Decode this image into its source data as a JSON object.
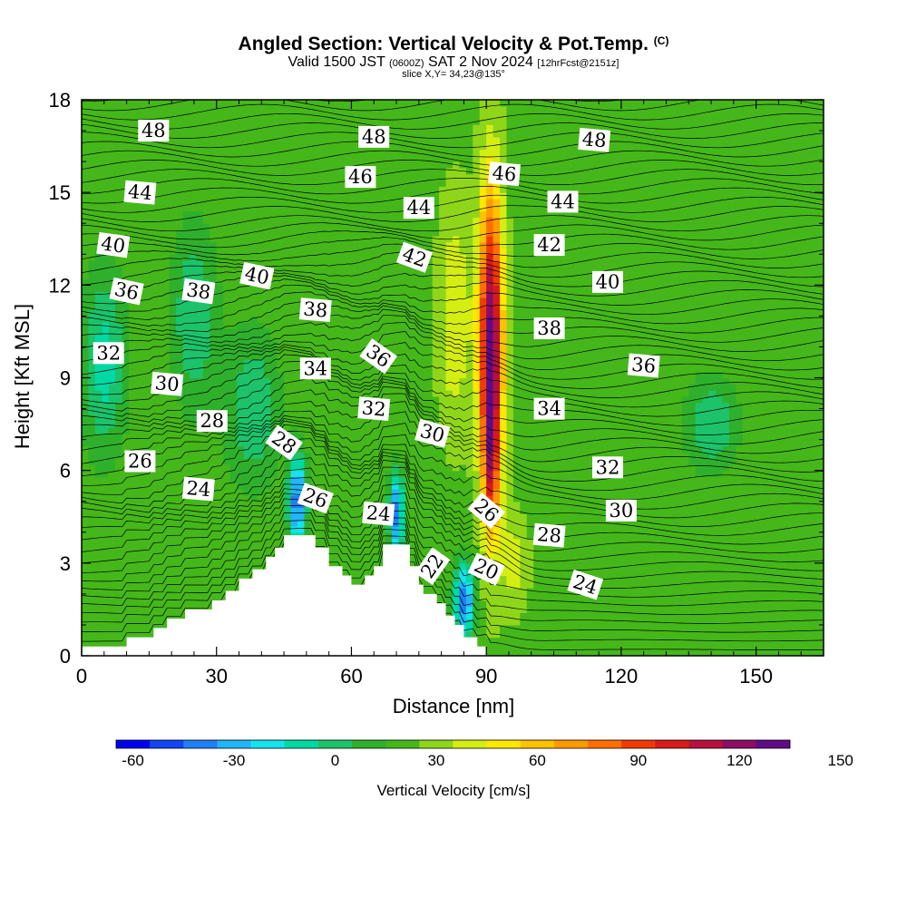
{
  "header": {
    "title": "Angled Section: Vertical Velocity & Pot.Temp.",
    "title_mark": "(C)",
    "valid_prefix": "Valid 1500 JST",
    "valid_utc": "(0600Z)",
    "valid_date": "SAT 2 Nov 2024",
    "forecast": "[12hrFcst@2151z]",
    "slice": "slice X,Y= 34,23@135°"
  },
  "colorbar": {
    "label": "Vertical Velocity [cm/s]",
    "min": -65,
    "step": 10,
    "tick_labels": [
      "-60",
      "-30",
      "0",
      "30",
      "60",
      "90",
      "120",
      "150"
    ],
    "tick_values": [
      -60,
      -30,
      0,
      30,
      60,
      90,
      120,
      150
    ],
    "colors": [
      "#0000f0",
      "#1245f5",
      "#1f7ff7",
      "#21b5f9",
      "#16e3ee",
      "#00d9a6",
      "#1cc36a",
      "#2fb02c",
      "#45b71a",
      "#8fd61a",
      "#d4ee12",
      "#ffe800",
      "#ffc200",
      "#ff9a00",
      "#ff6e00",
      "#f03a00",
      "#d81a1a",
      "#b8103c",
      "#8c0c66",
      "#600a8a"
    ]
  },
  "chart_data": {
    "type": "heatmap",
    "title": "Angled Section: Vertical Velocity & Pot.Temp. (C)",
    "xlabel": "Distance [nm]",
    "ylabel": "Height [Kft MSL]",
    "xlim": [
      0,
      165
    ],
    "ylim": [
      0,
      18
    ],
    "xticks": [
      0,
      30,
      60,
      90,
      120,
      150
    ],
    "yticks": [
      0,
      3,
      6,
      9,
      12,
      15,
      18
    ],
    "xtick_labels": [
      "0",
      "30",
      "60",
      "90",
      "120",
      "150"
    ],
    "ytick_labels": [
      "0",
      "3",
      "6",
      "9",
      "12",
      "15",
      "18"
    ],
    "grid": false,
    "fill_variable": "Vertical Velocity [cm/s]",
    "contour_variable": "Potential Temperature (C)",
    "contour_interval": 1,
    "terrain": [
      [
        0,
        0.3
      ],
      [
        10,
        0.3
      ],
      [
        10,
        0.6
      ],
      [
        16,
        0.6
      ],
      [
        16,
        0.9
      ],
      [
        19,
        0.9
      ],
      [
        19,
        1.2
      ],
      [
        23,
        1.2
      ],
      [
        23,
        1.5
      ],
      [
        29,
        1.5
      ],
      [
        29,
        1.8
      ],
      [
        32,
        1.8
      ],
      [
        32,
        2.1
      ],
      [
        35,
        2.1
      ],
      [
        35,
        2.5
      ],
      [
        38,
        2.5
      ],
      [
        38,
        2.8
      ],
      [
        41,
        2.8
      ],
      [
        41,
        3.2
      ],
      [
        43,
        3.2
      ],
      [
        43,
        3.5
      ],
      [
        45,
        3.5
      ],
      [
        45,
        3.9
      ],
      [
        52,
        3.9
      ],
      [
        52,
        3.5
      ],
      [
        55,
        3.5
      ],
      [
        55,
        2.9
      ],
      [
        58,
        2.9
      ],
      [
        58,
        2.6
      ],
      [
        60,
        2.6
      ],
      [
        60,
        2.3
      ],
      [
        63,
        2.3
      ],
      [
        63,
        2.6
      ],
      [
        65,
        2.6
      ],
      [
        65,
        2.9
      ],
      [
        67,
        2.9
      ],
      [
        67,
        3.6
      ],
      [
        73,
        3.6
      ],
      [
        73,
        2.9
      ],
      [
        75,
        2.9
      ],
      [
        75,
        2.3
      ],
      [
        76,
        2.3
      ],
      [
        76,
        2.0
      ],
      [
        79,
        2.0
      ],
      [
        79,
        1.7
      ],
      [
        81,
        1.7
      ],
      [
        81,
        1.3
      ],
      [
        83,
        1.3
      ],
      [
        83,
        1.0
      ],
      [
        85,
        1.0
      ],
      [
        85,
        0.6
      ],
      [
        88,
        0.6
      ],
      [
        88,
        0.3
      ],
      [
        90,
        0.3
      ]
    ],
    "velocity_cells": [
      {
        "x": 91,
        "y": 10.0,
        "sx": 2.6,
        "sy": 5.0,
        "v": 130
      },
      {
        "x": 91,
        "y": 6.2,
        "sx": 1.5,
        "sy": 2.2,
        "v": 60
      },
      {
        "x": 83,
        "y": 11.0,
        "sx": 3.5,
        "sy": 3.5,
        "v": 45
      },
      {
        "x": 62,
        "y": 15.5,
        "sx": 5.0,
        "sy": 2.0,
        "v": 25
      },
      {
        "x": 48,
        "y": 5.0,
        "sx": 2.0,
        "sy": 1.5,
        "v": -45
      },
      {
        "x": 70,
        "y": 4.6,
        "sx": 1.6,
        "sy": 1.3,
        "v": -45
      },
      {
        "x": 85,
        "y": 1.8,
        "sx": 2.2,
        "sy": 1.2,
        "v": -45
      },
      {
        "x": 25,
        "y": 11.0,
        "sx": 5.0,
        "sy": 3.0,
        "v": -5
      },
      {
        "x": 5,
        "y": 9.5,
        "sx": 5.0,
        "sy": 3.0,
        "v": -10
      },
      {
        "x": 38,
        "y": 8.0,
        "sx": 6.0,
        "sy": 2.5,
        "v": -5
      },
      {
        "x": 140,
        "y": 7.5,
        "sx": 6.0,
        "sy": 1.5,
        "v": -5
      },
      {
        "x": 120,
        "y": 12.0,
        "sx": 8.0,
        "sy": 3.0,
        "v": 25
      },
      {
        "x": 40,
        "y": 2.0,
        "sx": 4.0,
        "sy": 1.5,
        "v": 20
      },
      {
        "x": 96,
        "y": 3.0,
        "sx": 3.0,
        "sy": 1.5,
        "v": 40
      },
      {
        "x": 100,
        "y": 15.0,
        "sx": 5.0,
        "sy": 2.0,
        "v": 20
      }
    ],
    "contour_labels": [
      {
        "text": "48",
        "x": 16,
        "y": 17.0,
        "rot": 0
      },
      {
        "text": "48",
        "x": 65,
        "y": 16.8,
        "rot": 0
      },
      {
        "text": "48",
        "x": 114,
        "y": 16.7,
        "rot": 5
      },
      {
        "text": "46",
        "x": 62,
        "y": 15.5,
        "rot": 0
      },
      {
        "text": "46",
        "x": 94,
        "y": 15.6,
        "rot": 5
      },
      {
        "text": "44",
        "x": 13,
        "y": 15.0,
        "rot": 5
      },
      {
        "text": "44",
        "x": 75,
        "y": 14.5,
        "rot": 0
      },
      {
        "text": "44",
        "x": 107,
        "y": 14.7,
        "rot": 0
      },
      {
        "text": "42",
        "x": 74,
        "y": 12.9,
        "rot": 20
      },
      {
        "text": "42",
        "x": 104,
        "y": 13.3,
        "rot": 0
      },
      {
        "text": "40",
        "x": 7,
        "y": 13.3,
        "rot": 8
      },
      {
        "text": "40",
        "x": 39,
        "y": 12.3,
        "rot": 12
      },
      {
        "text": "40",
        "x": 117,
        "y": 12.1,
        "rot": 0
      },
      {
        "text": "38",
        "x": 26,
        "y": 11.8,
        "rot": 8
      },
      {
        "text": "38",
        "x": 52,
        "y": 11.2,
        "rot": 5
      },
      {
        "text": "38",
        "x": 104,
        "y": 10.6,
        "rot": 0
      },
      {
        "text": "36",
        "x": 10,
        "y": 11.8,
        "rot": 12
      },
      {
        "text": "36",
        "x": 66,
        "y": 9.7,
        "rot": 35
      },
      {
        "text": "36",
        "x": 125,
        "y": 9.4,
        "rot": 5
      },
      {
        "text": "34",
        "x": 52,
        "y": 9.3,
        "rot": 0
      },
      {
        "text": "34",
        "x": 104,
        "y": 8.0,
        "rot": 0
      },
      {
        "text": "32",
        "x": 6,
        "y": 9.8,
        "rot": 0
      },
      {
        "text": "32",
        "x": 65,
        "y": 8.0,
        "rot": 5
      },
      {
        "text": "32",
        "x": 117,
        "y": 6.1,
        "rot": 0
      },
      {
        "text": "30",
        "x": 19,
        "y": 8.8,
        "rot": 5
      },
      {
        "text": "30",
        "x": 78,
        "y": 7.2,
        "rot": 15
      },
      {
        "text": "30",
        "x": 120,
        "y": 4.7,
        "rot": 0
      },
      {
        "text": "28",
        "x": 29,
        "y": 7.6,
        "rot": 0
      },
      {
        "text": "28",
        "x": 45,
        "y": 6.9,
        "rot": 35
      },
      {
        "text": "28",
        "x": 104,
        "y": 3.9,
        "rot": 5
      },
      {
        "text": "26",
        "x": 13,
        "y": 6.3,
        "rot": 0
      },
      {
        "text": "26",
        "x": 52,
        "y": 5.1,
        "rot": 20
      },
      {
        "text": "26",
        "x": 90,
        "y": 4.7,
        "rot": 40
      },
      {
        "text": "24",
        "x": 26,
        "y": 5.4,
        "rot": 5
      },
      {
        "text": "24",
        "x": 66,
        "y": 4.6,
        "rot": 5
      },
      {
        "text": "24",
        "x": 112,
        "y": 2.3,
        "rot": 18
      },
      {
        "text": "22",
        "x": 78,
        "y": 2.9,
        "rot": -55
      },
      {
        "text": "20",
        "x": 90,
        "y": 2.8,
        "rot": 25
      }
    ]
  }
}
